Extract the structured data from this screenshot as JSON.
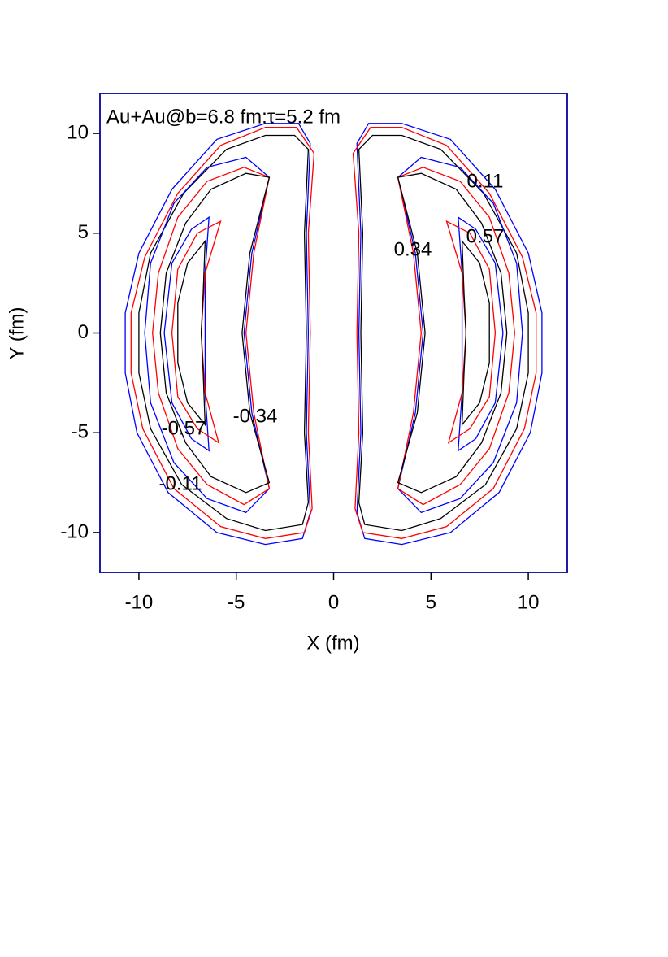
{
  "chart_data": {
    "type": "contour",
    "annotation": "Au+Au@b=6.8 fm:τ=5.2 fm",
    "xlabel": "X (fm)",
    "ylabel": "Y (fm)",
    "xlim": [
      -12,
      12
    ],
    "ylim": [
      -12,
      12
    ],
    "xticks": [
      -10,
      -5,
      0,
      5,
      10
    ],
    "yticks": [
      -10,
      -5,
      0,
      5,
      10
    ],
    "frame_color": "#1c1ca8",
    "contour_labels": [
      0.11,
      0.57,
      0.34,
      -0.34,
      -0.57,
      -0.11
    ],
    "contours": [
      {
        "color": "#0000ff",
        "x": [
          1.2,
          1.8,
          3.5,
          6,
          8.3,
          10,
          10.7,
          10.7,
          10.1,
          8.5,
          6,
          3.5,
          1.6,
          1.2,
          1.4,
          1.3,
          1.4
        ],
        "y": [
          9.5,
          10.5,
          10.5,
          9.7,
          7.2,
          4,
          1,
          -2,
          -5,
          -8,
          -10,
          -10.6,
          -10.3,
          -9,
          -5,
          0,
          5
        ]
      },
      {
        "color": "#ff0000",
        "x": [
          1.0,
          1.9,
          3.5,
          5.8,
          8,
          9.7,
          10.4,
          10.4,
          9.8,
          8.2,
          5.8,
          3.5,
          1.5,
          1.1,
          1.3,
          1.2,
          1.3
        ],
        "y": [
          9,
          10.3,
          10.3,
          9.4,
          7,
          3.8,
          1,
          -2,
          -4.8,
          -7.8,
          -9.7,
          -10.3,
          -10,
          -8.8,
          -5,
          0,
          5
        ]
      },
      {
        "color": "#000000",
        "x": [
          1.3,
          2,
          3.5,
          5.5,
          7.7,
          9.4,
          10,
          10,
          9.4,
          7.8,
          5.5,
          3.5,
          1.6,
          1.3,
          1.5,
          1.4,
          1.5
        ],
        "y": [
          9.2,
          9.9,
          9.9,
          9.2,
          7,
          4,
          1,
          -2,
          -4.8,
          -7.6,
          -9.3,
          -9.9,
          -9.6,
          -8.5,
          -5,
          0,
          5
        ]
      },
      {
        "color": "#0000ff",
        "x": [
          3.3,
          4.5,
          6.5,
          8.2,
          9.4,
          9.7,
          9.4,
          8.2,
          6.5,
          4.5,
          3.3,
          4.2,
          4.6,
          4.2
        ],
        "y": [
          7.8,
          8.8,
          8.3,
          6.5,
          3.5,
          0,
          -3.5,
          -6.5,
          -8.3,
          -9,
          -7.8,
          -4,
          0,
          4
        ]
      },
      {
        "color": "#ff0000",
        "x": [
          3.3,
          4.6,
          6.5,
          8,
          9,
          9.3,
          9,
          8,
          6.5,
          4.6,
          3.3,
          4.1,
          4.5,
          4.1
        ],
        "y": [
          7.8,
          8.3,
          7.6,
          5.8,
          3,
          0,
          -3,
          -5.8,
          -7.6,
          -8.6,
          -7.8,
          -4,
          0,
          4
        ]
      },
      {
        "color": "#000000",
        "x": [
          3.3,
          4.5,
          6.3,
          7.6,
          8.6,
          8.9,
          8.6,
          7.6,
          6.3,
          4.5,
          3.3,
          4.3,
          4.7,
          4.3
        ],
        "y": [
          7.8,
          8,
          7.2,
          5.5,
          3,
          0,
          -3,
          -5.5,
          -7.2,
          -8,
          -7.5,
          -4,
          0,
          4
        ]
      },
      {
        "color": "#0000ff",
        "x": [
          6.4,
          7.3,
          8.3,
          8.7,
          8.3,
          7.3,
          6.4,
          6.6,
          6.6,
          6.6
        ],
        "y": [
          5.8,
          5.2,
          3.5,
          0,
          -3.5,
          -5.3,
          -5.9,
          -3,
          0,
          3
        ]
      },
      {
        "color": "#ff0000",
        "x": [
          5.8,
          7,
          8,
          8.3,
          8,
          7,
          5.9,
          6.6,
          6.8,
          6.6
        ],
        "y": [
          5.6,
          5,
          3.2,
          0,
          -3.2,
          -4.8,
          -5.5,
          -3,
          0,
          3
        ]
      },
      {
        "color": "#000000",
        "x": [
          6.6,
          7.5,
          8,
          8,
          7.5,
          6.6,
          6.7,
          6.8,
          6.7
        ],
        "y": [
          4.6,
          3.5,
          1.5,
          -1.5,
          -3.5,
          -4.6,
          -2,
          0,
          2
        ]
      },
      {
        "color": "#0000ff",
        "x": [
          -1.2,
          -1.8,
          -3.5,
          -6,
          -8.3,
          -10,
          -10.7,
          -10.7,
          -10.1,
          -8.5,
          -6,
          -3.5,
          -1.6,
          -1.2,
          -1.4,
          -1.3,
          -1.4
        ],
        "y": [
          9.5,
          10.5,
          10.5,
          9.7,
          7.2,
          4,
          1,
          -2,
          -5,
          -8,
          -10,
          -10.6,
          -10.3,
          -9,
          -5,
          0,
          5
        ]
      },
      {
        "color": "#ff0000",
        "x": [
          -1.0,
          -1.9,
          -3.5,
          -5.8,
          -8,
          -9.7,
          -10.4,
          -10.4,
          -9.8,
          -8.2,
          -5.8,
          -3.5,
          -1.5,
          -1.1,
          -1.3,
          -1.2,
          -1.3
        ],
        "y": [
          9,
          10.3,
          10.3,
          9.4,
          7,
          3.8,
          1,
          -2,
          -4.8,
          -7.8,
          -9.7,
          -10.3,
          -10,
          -8.8,
          -5,
          0,
          5
        ]
      },
      {
        "color": "#000000",
        "x": [
          -1.3,
          -2,
          -3.5,
          -5.5,
          -7.7,
          -9.4,
          -10,
          -10,
          -9.4,
          -7.8,
          -5.5,
          -3.5,
          -1.6,
          -1.3,
          -1.5,
          -1.4,
          -1.5
        ],
        "y": [
          9.2,
          9.9,
          9.9,
          9.2,
          7,
          4,
          1,
          -2,
          -4.8,
          -7.6,
          -9.3,
          -9.9,
          -9.6,
          -8.5,
          -5,
          0,
          5
        ]
      },
      {
        "color": "#0000ff",
        "x": [
          -3.3,
          -4.5,
          -6.5,
          -8.2,
          -9.4,
          -9.7,
          -9.4,
          -8.2,
          -6.5,
          -4.5,
          -3.3,
          -4.2,
          -4.6,
          -4.2
        ],
        "y": [
          7.8,
          8.8,
          8.3,
          6.5,
          3.5,
          0,
          -3.5,
          -6.5,
          -8.3,
          -9,
          -7.8,
          -4,
          0,
          4
        ]
      },
      {
        "color": "#ff0000",
        "x": [
          -3.3,
          -4.6,
          -6.5,
          -8,
          -9,
          -9.3,
          -9,
          -8,
          -6.5,
          -4.6,
          -3.3,
          -4.1,
          -4.5,
          -4.1
        ],
        "y": [
          7.8,
          8.3,
          7.6,
          5.8,
          3,
          0,
          -3,
          -5.8,
          -7.6,
          -8.6,
          -7.8,
          -4,
          0,
          4
        ]
      },
      {
        "color": "#000000",
        "x": [
          -3.3,
          -4.5,
          -6.3,
          -7.6,
          -8.6,
          -8.9,
          -8.6,
          -7.6,
          -6.3,
          -4.5,
          -3.3,
          -4.3,
          -4.7,
          -4.3
        ],
        "y": [
          7.8,
          8,
          7.2,
          5.5,
          3,
          0,
          -3,
          -5.5,
          -7.2,
          -8,
          -7.5,
          -4,
          0,
          4
        ]
      },
      {
        "color": "#0000ff",
        "x": [
          -6.4,
          -7.3,
          -8.3,
          -8.7,
          -8.3,
          -7.3,
          -6.4,
          -6.6,
          -6.6,
          -6.6
        ],
        "y": [
          5.8,
          5.2,
          3.5,
          0,
          -3.5,
          -5.3,
          -5.9,
          -3,
          0,
          3
        ]
      },
      {
        "color": "#ff0000",
        "x": [
          -5.8,
          -7,
          -8,
          -8.3,
          -8,
          -7,
          -5.9,
          -6.6,
          -6.8,
          -6.6
        ],
        "y": [
          5.6,
          5,
          3.2,
          0,
          -3.2,
          -4.8,
          -5.5,
          -3,
          0,
          3
        ]
      },
      {
        "color": "#000000",
        "x": [
          -6.6,
          -7.5,
          -8,
          -8,
          -7.5,
          -6.6,
          -6.7,
          -6.8,
          -6.7
        ],
        "y": [
          4.6,
          3.5,
          1.5,
          -1.5,
          -3.5,
          -4.6,
          -2,
          0,
          2
        ]
      }
    ]
  }
}
